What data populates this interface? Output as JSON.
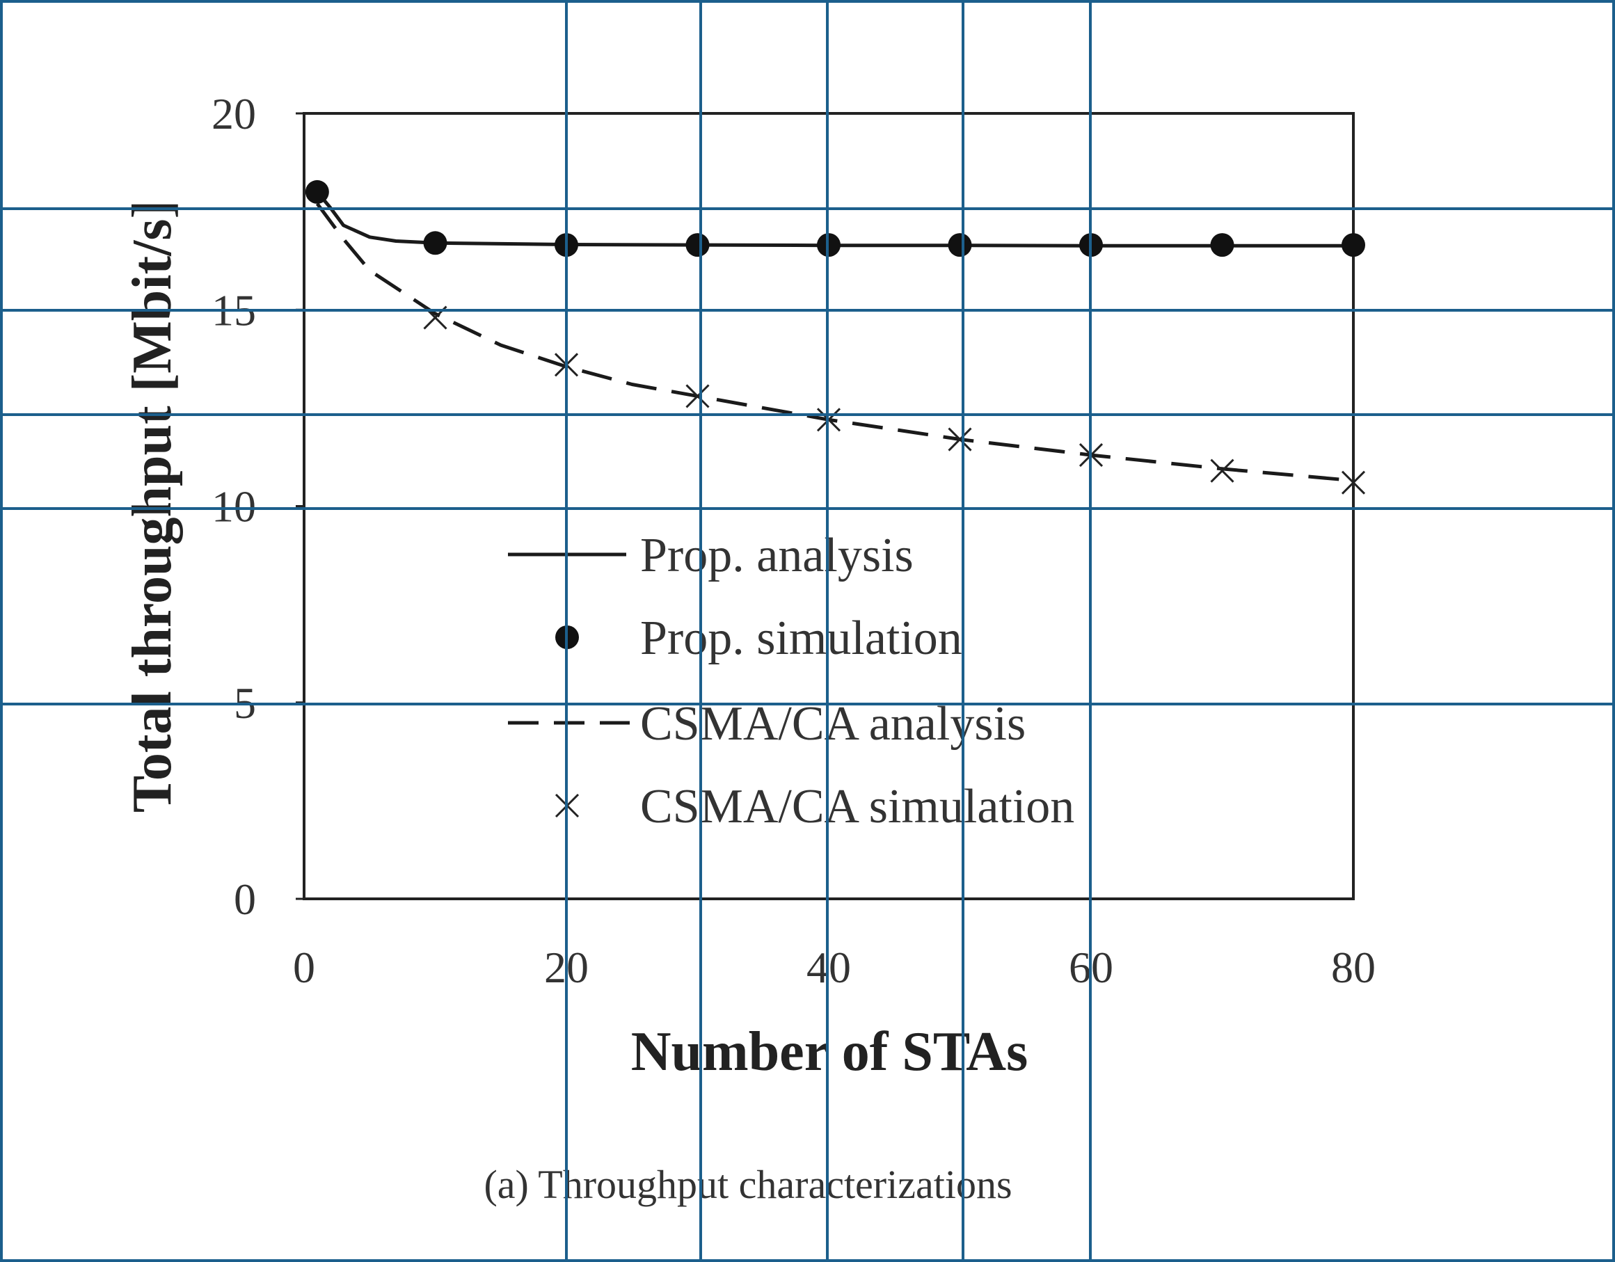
{
  "caption": "(a) Throughput characterizations",
  "chart_data": {
    "type": "line",
    "title": "",
    "xlabel": "Number of STAs",
    "ylabel": "Total throughput [Mbit/s]",
    "xlim": [
      0,
      80
    ],
    "ylim": [
      0,
      20
    ],
    "xticks": [
      0,
      20,
      40,
      60,
      80
    ],
    "yticks": [
      0,
      5,
      10,
      15,
      20
    ],
    "grid": false,
    "legend_position": "center",
    "series": [
      {
        "name": "Prop. analysis",
        "style": "solid-line",
        "color": "#1a1a1a",
        "x": [
          1,
          2,
          3,
          5,
          7,
          10,
          15,
          20,
          30,
          40,
          50,
          60,
          70,
          80
        ],
        "y": [
          18.0,
          17.6,
          17.15,
          16.85,
          16.75,
          16.7,
          16.68,
          16.66,
          16.65,
          16.64,
          16.64,
          16.63,
          16.63,
          16.63
        ]
      },
      {
        "name": "Prop. simulation",
        "style": "filled-circle",
        "color": "#111111",
        "x": [
          1,
          10,
          20,
          30,
          40,
          50,
          60,
          70,
          80
        ],
        "y": [
          18.0,
          16.7,
          16.65,
          16.65,
          16.65,
          16.65,
          16.65,
          16.65,
          16.65
        ]
      },
      {
        "name": "CSMA/CA analysis",
        "style": "dashed-line",
        "color": "#1a1a1a",
        "x": [
          1,
          3,
          5,
          10,
          15,
          20,
          25,
          30,
          40,
          50,
          60,
          70,
          80
        ],
        "y": [
          17.7,
          16.8,
          16.0,
          14.9,
          14.1,
          13.55,
          13.1,
          12.8,
          12.2,
          11.7,
          11.3,
          10.95,
          10.65
        ]
      },
      {
        "name": "CSMA/CA simulation",
        "style": "x-marker",
        "color": "#222222",
        "x": [
          10,
          20,
          30,
          40,
          50,
          60,
          70,
          80
        ],
        "y": [
          14.8,
          13.6,
          12.8,
          12.2,
          11.7,
          11.3,
          10.9,
          10.6
        ]
      }
    ]
  },
  "overlay_color": "#1c5f8c"
}
